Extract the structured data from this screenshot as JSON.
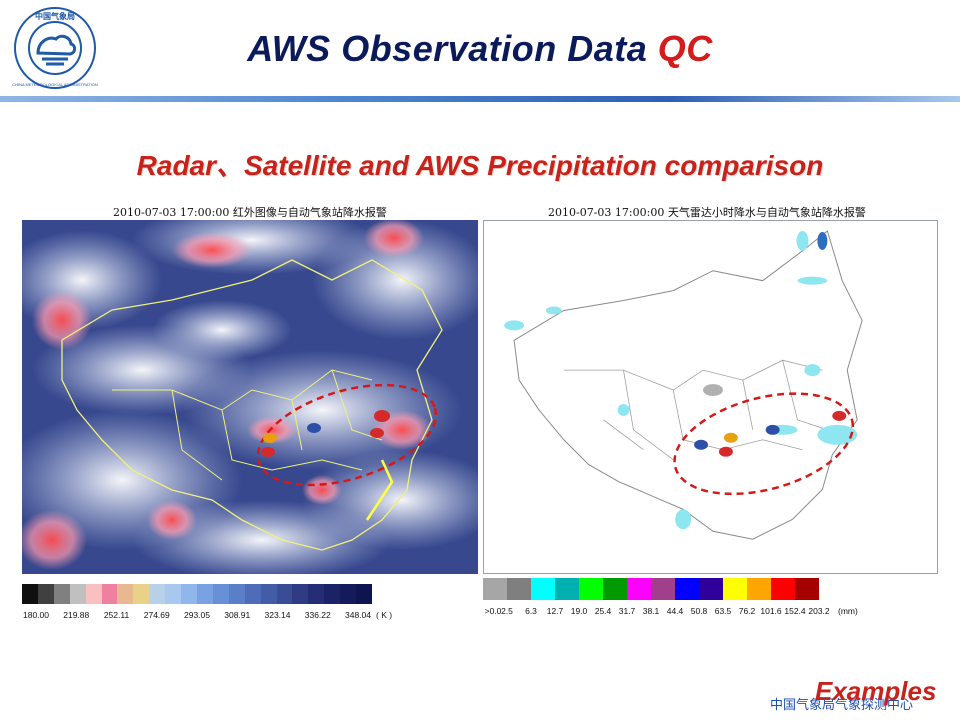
{
  "header": {
    "title_main": "AWS Observation Data ",
    "title_accent": "QC",
    "subtitle": "Radar、Satellite and AWS Precipitation comparison"
  },
  "logo": {
    "top_text": "中国气象局",
    "ring_text": "CHINA METEOROLOGICAL ADMINISTRATION"
  },
  "left_panel": {
    "caption_time": "2010-07-03 17:00:00",
    "caption_text": "红外图像与自动气象站降水报警",
    "legend_ticks": [
      "180.00",
      "219.88",
      "252.11",
      "274.69",
      "293.05",
      "308.91",
      "323.14",
      "336.22",
      "348.04"
    ],
    "legend_unit": "( K )"
  },
  "right_panel": {
    "caption_time": "2010-07-03 17:00:00",
    "caption_text": "天气雷达小时降水与自动气象站降水报警",
    "legend_ticks": [
      ">0.0",
      "2.5",
      "6.3",
      "12.7",
      "19.0",
      "25.4",
      "31.7",
      "38.1",
      "44.4",
      "50.8",
      "63.5",
      "76.2",
      "101.6",
      "152.4",
      "203.2"
    ],
    "legend_unit": "(mm)",
    "legend_colors": [
      "#a6a6a6",
      "#7f7f7f",
      "#00ffff",
      "#00b0b0",
      "#00ff00",
      "#009a00",
      "#ff00ff",
      "#a0408a",
      "#0000ff",
      "#30009a",
      "#ffff00",
      "#ffa500",
      "#ff0000",
      "#a50000"
    ]
  },
  "footer": {
    "examples": "Examples",
    "org": "中国气象局气象探测中心"
  }
}
